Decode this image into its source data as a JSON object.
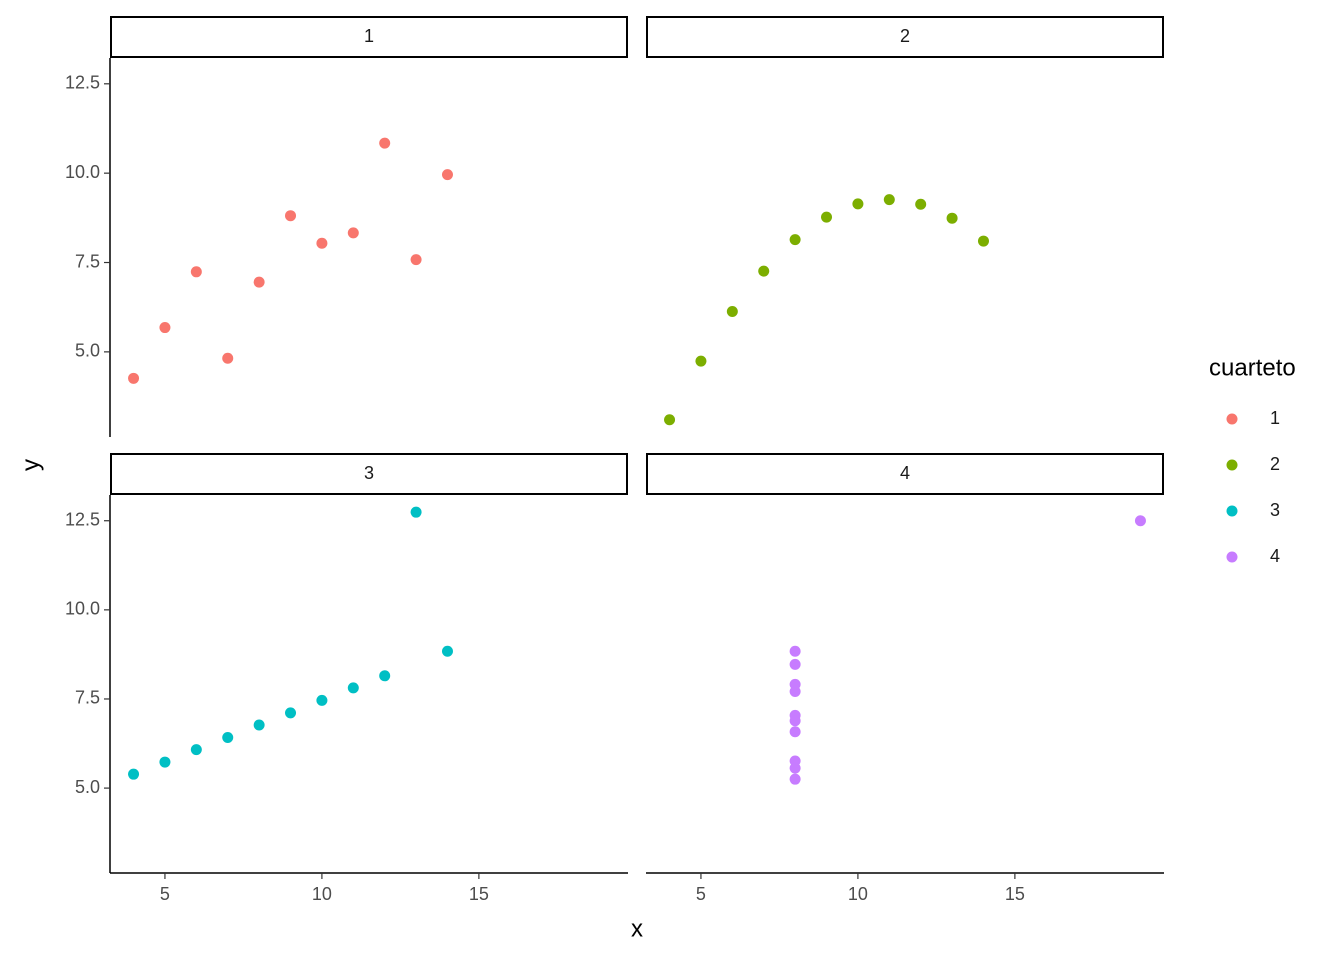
{
  "axis_labels": {
    "x": "x",
    "y": "y"
  },
  "legend": {
    "title": "cuarteto"
  },
  "chart_data": [
    {
      "type": "scatter",
      "facet": "1",
      "xlim": [
        3.25,
        19.75
      ],
      "ylim": [
        2.618,
        13.222
      ],
      "yticks": [
        {
          "value": 5,
          "label": "5.0"
        },
        {
          "value": 7.5,
          "label": "7.5"
        },
        {
          "value": 10,
          "label": "10.0"
        },
        {
          "value": 12.5,
          "label": "12.5"
        }
      ],
      "series": [
        {
          "name": "1",
          "color": "#F8766D",
          "x": [
            10,
            8,
            13,
            9,
            11,
            14,
            6,
            4,
            12,
            7,
            5
          ],
          "values": [
            8.04,
            6.95,
            7.58,
            8.81,
            8.33,
            9.96,
            7.24,
            4.26,
            10.84,
            4.82,
            5.68
          ]
        }
      ]
    },
    {
      "type": "scatter",
      "facet": "2",
      "xlim": [
        3.25,
        19.75
      ],
      "ylim": [
        2.618,
        13.222
      ],
      "series": [
        {
          "name": "2",
          "color": "#7CAE00",
          "x": [
            10,
            8,
            13,
            9,
            11,
            14,
            6,
            4,
            12,
            7,
            5
          ],
          "values": [
            9.14,
            8.14,
            8.74,
            8.77,
            9.26,
            8.1,
            6.13,
            3.1,
            9.13,
            7.26,
            4.74
          ]
        }
      ]
    },
    {
      "type": "scatter",
      "facet": "3",
      "xlim": [
        3.25,
        19.75
      ],
      "ylim": [
        2.618,
        13.222
      ],
      "xticks": [
        5,
        10,
        15
      ],
      "yticks": [
        {
          "value": 5,
          "label": "5.0"
        },
        {
          "value": 7.5,
          "label": "7.5"
        },
        {
          "value": 10,
          "label": "10.0"
        },
        {
          "value": 12.5,
          "label": "12.5"
        }
      ],
      "series": [
        {
          "name": "3",
          "color": "#00BFC4",
          "x": [
            10,
            8,
            13,
            9,
            11,
            14,
            6,
            4,
            12,
            7,
            5
          ],
          "values": [
            7.46,
            6.77,
            12.74,
            7.11,
            7.81,
            8.84,
            6.08,
            5.39,
            8.15,
            6.42,
            5.73
          ]
        }
      ]
    },
    {
      "type": "scatter",
      "facet": "4",
      "xlim": [
        3.25,
        19.75
      ],
      "ylim": [
        2.618,
        13.222
      ],
      "xticks": [
        5,
        10,
        15
      ],
      "series": [
        {
          "name": "4",
          "color": "#C77CFF",
          "x": [
            8,
            8,
            8,
            8,
            8,
            8,
            8,
            19,
            8,
            8,
            8
          ],
          "values": [
            6.58,
            5.76,
            7.71,
            8.84,
            8.47,
            7.04,
            5.25,
            12.5,
            5.56,
            7.91,
            6.89
          ]
        }
      ]
    }
  ]
}
